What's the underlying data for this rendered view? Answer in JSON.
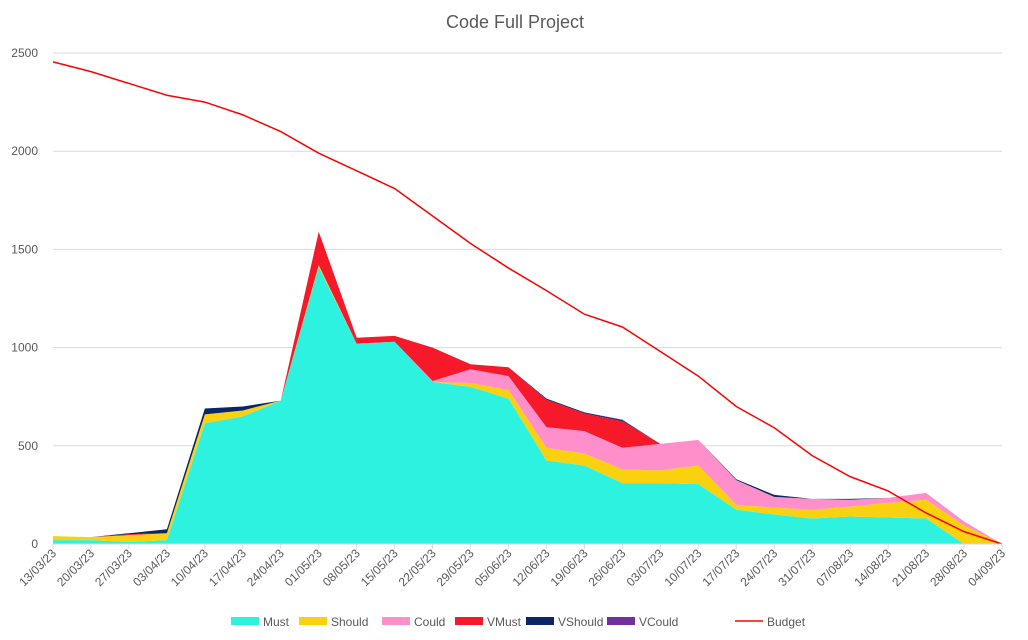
{
  "chart_data": {
    "type": "area",
    "stacked": true,
    "title": "Code Full Project",
    "xlabel": "",
    "ylabel": "",
    "ylim": [
      0,
      2500
    ],
    "yticks": [
      0,
      500,
      1000,
      1500,
      2000,
      2500
    ],
    "grid": true,
    "legend_position": "bottom",
    "categories": [
      "13/03/23",
      "20/03/23",
      "27/03/23",
      "03/04/23",
      "10/04/23",
      "17/04/23",
      "24/04/23",
      "01/05/23",
      "08/05/23",
      "15/05/23",
      "22/05/23",
      "29/05/23",
      "05/06/23",
      "12/06/23",
      "19/06/23",
      "26/06/23",
      "03/07/23",
      "10/07/23",
      "17/07/23",
      "24/07/23",
      "31/07/23",
      "07/08/23",
      "14/08/23",
      "21/08/23",
      "28/08/23",
      "04/09/23"
    ],
    "series": [
      {
        "name": "Must",
        "color": "#2EF2E0",
        "values": [
          20,
          20,
          10,
          20,
          615,
          650,
          730,
          1410,
          1020,
          1030,
          825,
          800,
          740,
          425,
          400,
          310,
          310,
          305,
          175,
          150,
          130,
          140,
          135,
          130,
          0,
          0
        ]
      },
      {
        "name": "Should",
        "color": "#F9D10F",
        "values": [
          20,
          15,
          35,
          35,
          45,
          30,
          0,
          10,
          0,
          0,
          0,
          20,
          45,
          65,
          60,
          70,
          65,
          95,
          25,
          35,
          45,
          50,
          75,
          95,
          95,
          0
        ]
      },
      {
        "name": "Could",
        "color": "#FF8FCB",
        "values": [
          0,
          0,
          0,
          0,
          0,
          0,
          0,
          0,
          0,
          0,
          5,
          70,
          70,
          105,
          115,
          110,
          135,
          130,
          125,
          55,
          55,
          35,
          25,
          35,
          20,
          0
        ]
      },
      {
        "name": "VMust",
        "color": "#F5192A",
        "values": [
          0,
          0,
          5,
          0,
          0,
          0,
          0,
          170,
          30,
          30,
          170,
          25,
          45,
          140,
          90,
          135,
          0,
          0,
          0,
          0,
          0,
          0,
          0,
          0,
          0,
          0
        ]
      },
      {
        "name": "VShould",
        "color": "#0B2565",
        "values": [
          0,
          0,
          5,
          20,
          30,
          20,
          0,
          0,
          0,
          0,
          0,
          0,
          0,
          5,
          5,
          5,
          0,
          0,
          5,
          10,
          0,
          5,
          0,
          0,
          0,
          0
        ]
      },
      {
        "name": "VCould",
        "color": "#7030A0",
        "values": [
          0,
          0,
          0,
          0,
          0,
          0,
          0,
          0,
          0,
          0,
          0,
          0,
          0,
          0,
          0,
          3,
          0,
          0,
          0,
          0,
          0,
          0,
          0,
          0,
          0,
          0
        ]
      }
    ],
    "line": {
      "name": "Budget",
      "color": "#FF0000",
      "values": [
        2455,
        2405,
        2345,
        2285,
        2250,
        2185,
        2100,
        1990,
        1900,
        1810,
        1670,
        1530,
        1405,
        1290,
        1170,
        1105,
        980,
        855,
        700,
        592,
        450,
        343,
        270,
        158,
        63,
        0
      ]
    }
  }
}
